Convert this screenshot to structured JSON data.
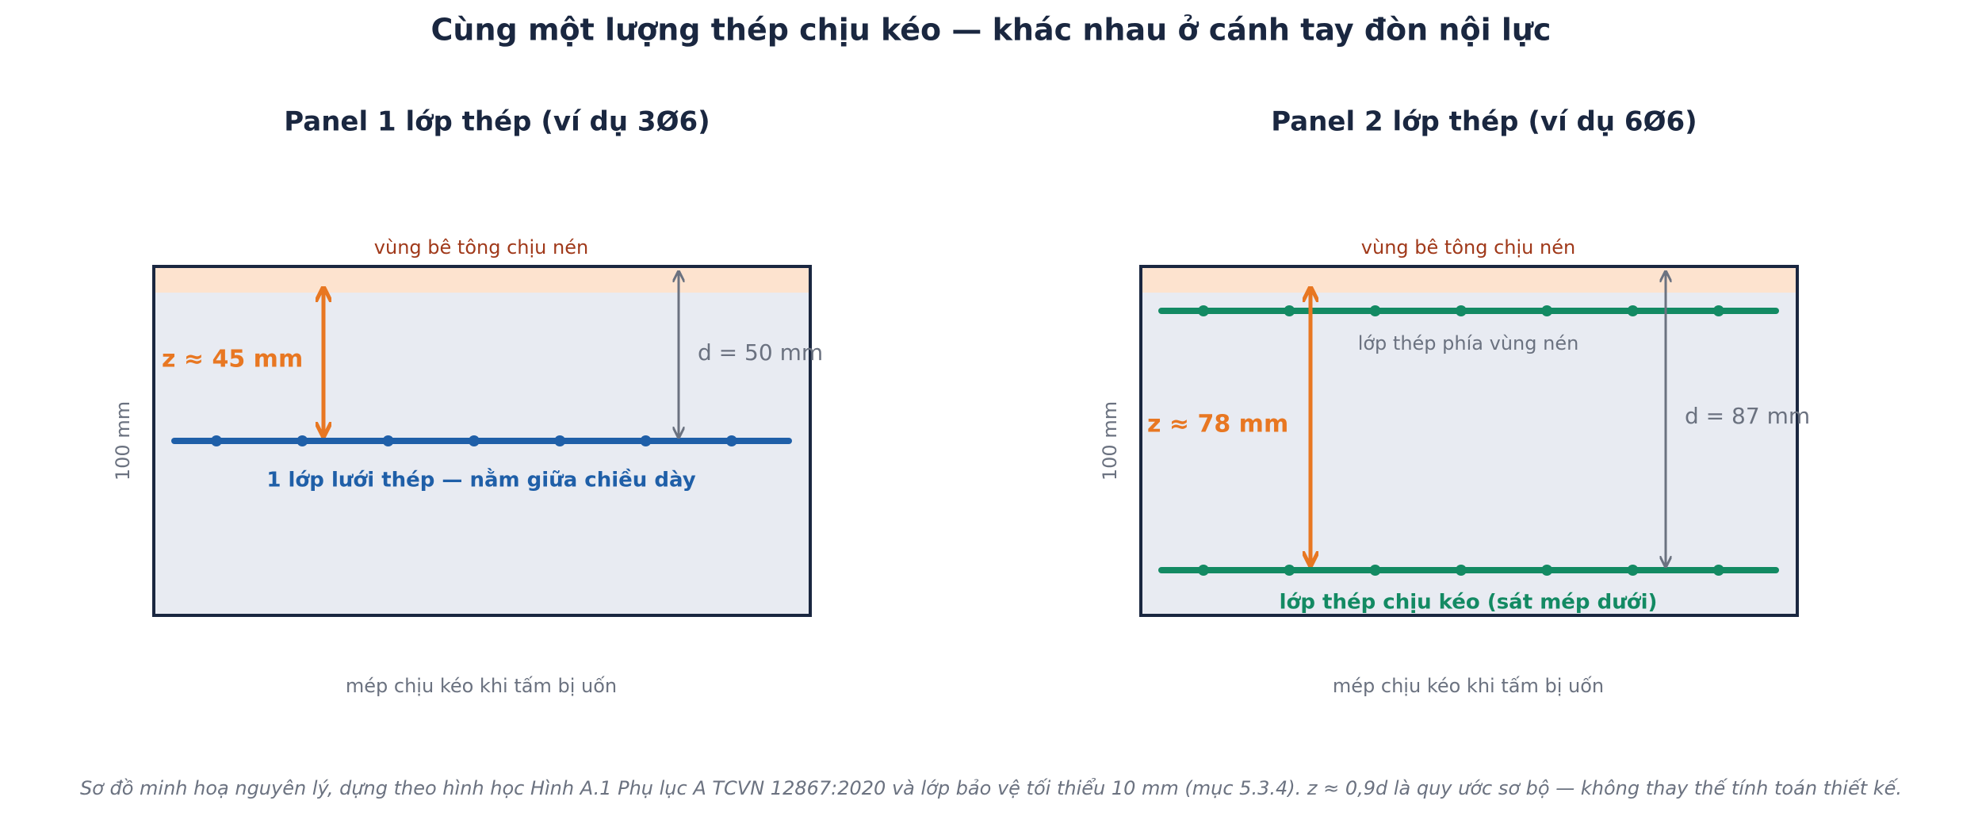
{
  "title": "Cùng một lượng thép chịu kéo — khác nhau ở cánh tay đòn nội lực",
  "panels": [
    {
      "title": "Panel 1 lớp thép (ví dụ 3Ø6)",
      "compression_label": "vùng bê tông chịu nén",
      "thickness_label": "100 mm",
      "z_label": "z ≈ 45 mm",
      "d_label": "d = 50 mm",
      "layer_labels": [
        "1 lớp lưới thép — nằm giữa chiều dày"
      ],
      "tension_edge_label": "mép chịu kéo khi tấm bị uốn"
    },
    {
      "title": "Panel 2 lớp thép (ví dụ 6Ø6)",
      "compression_label": "vùng bê tông chịu nén",
      "thickness_label": "100 mm",
      "z_label": "z ≈ 78 mm",
      "d_label": "d = 87 mm",
      "layer_labels": [
        "lớp thép phía vùng nén",
        "lớp thép chịu kéo (sát mép dưới)"
      ],
      "tension_edge_label": "mép chịu kéo khi tấm bị uốn"
    }
  ],
  "footnote": "Sơ đồ minh hoạ nguyên lý, dựng theo hình học Hình A.1 Phụ lục A TCVN 12867:2020 và lớp bảo vệ tối thiểu 10 mm (mục 5.3.4). z ≈ 0,9d là quy ước sơ bộ — không thay thế tính toán thiết kế."
}
